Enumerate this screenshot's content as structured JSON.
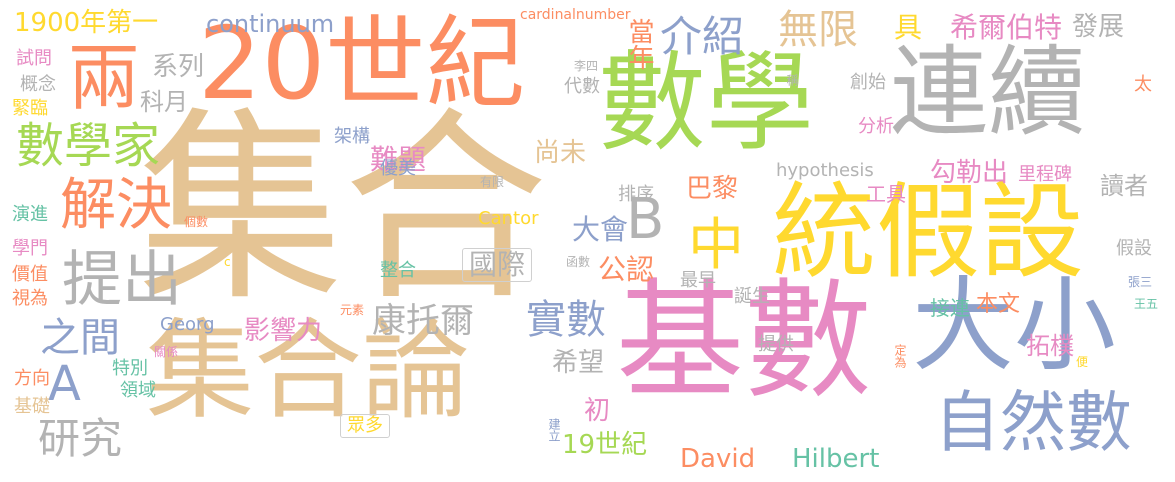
{
  "palette": {
    "orange": "#fc8d62",
    "blue": "#8da0cb",
    "pink": "#e78ac3",
    "green": "#a6d854",
    "yellow": "#ffd92f",
    "tan": "#e5c494",
    "gray": "#b3b3b3",
    "teal": "#66c2a5"
  },
  "words": [
    {
      "text": "集合",
      "color": "tan"
    },
    {
      "text": "數學",
      "color": "green"
    },
    {
      "text": "基數",
      "color": "pink"
    },
    {
      "text": "20世紀",
      "color": "orange"
    },
    {
      "text": "連續",
      "color": "gray"
    },
    {
      "text": "統假設",
      "color": "yellow"
    },
    {
      "text": "集合論",
      "color": "tan"
    },
    {
      "text": "大小",
      "color": "blue"
    },
    {
      "text": "自然數",
      "color": "blue"
    },
    {
      "text": "兩",
      "color": "orange"
    },
    {
      "text": "數學家",
      "color": "green"
    },
    {
      "text": "解決",
      "color": "orange"
    },
    {
      "text": "提出",
      "color": "gray"
    },
    {
      "text": "B",
      "color": "gray"
    },
    {
      "text": "中",
      "color": "yellow"
    },
    {
      "text": "A",
      "color": "blue"
    },
    {
      "text": "之間",
      "color": "blue"
    },
    {
      "text": "研究",
      "color": "gray"
    },
    {
      "text": "康托爾",
      "color": "gray"
    },
    {
      "text": "實數",
      "color": "blue"
    },
    {
      "text": "1900年第一",
      "color": "yellow"
    },
    {
      "text": "continuum",
      "color": "blue"
    },
    {
      "text": "cardinalnumber",
      "color": "orange"
    },
    {
      "text": "介紹",
      "color": "blue"
    },
    {
      "text": "當年",
      "color": "orange"
    },
    {
      "text": "無限",
      "color": "tan"
    },
    {
      "text": "具",
      "color": "yellow"
    },
    {
      "text": "希爾伯特",
      "color": "pink"
    },
    {
      "text": "發展",
      "color": "gray"
    },
    {
      "text": "系列",
      "color": "gray"
    },
    {
      "text": "科月",
      "color": "gray"
    },
    {
      "text": "難題",
      "color": "pink"
    },
    {
      "text": "尚未",
      "color": "tan"
    },
    {
      "text": "巴黎",
      "color": "orange"
    },
    {
      "text": "大會",
      "color": "blue"
    },
    {
      "text": "國際",
      "color": "gray"
    },
    {
      "text": "公認",
      "color": "orange"
    },
    {
      "text": "影響力",
      "color": "pink"
    },
    {
      "text": "希望",
      "color": "gray"
    },
    {
      "text": "初",
      "color": "pink"
    },
    {
      "text": "19世紀",
      "color": "green"
    },
    {
      "text": "David",
      "color": "orange"
    },
    {
      "text": "Hilbert",
      "color": "teal"
    },
    {
      "text": "勾勒出",
      "color": "pink"
    },
    {
      "text": "hypothesis",
      "color": "gray"
    },
    {
      "text": "Cantor",
      "color": "yellow"
    },
    {
      "text": "里程碑",
      "color": "pink"
    },
    {
      "text": "讀者",
      "color": "gray"
    },
    {
      "text": "工具",
      "color": "pink"
    },
    {
      "text": "本文",
      "color": "orange"
    },
    {
      "text": "接連",
      "color": "teal"
    },
    {
      "text": "誕生",
      "color": "gray"
    },
    {
      "text": "拓樸",
      "color": "pink"
    },
    {
      "text": "提供",
      "color": "gray"
    },
    {
      "text": "最早",
      "color": "gray"
    },
    {
      "text": "排序",
      "color": "gray"
    },
    {
      "text": "分析",
      "color": "pink"
    },
    {
      "text": "創始",
      "color": "gray"
    },
    {
      "text": "代數",
      "color": "gray"
    },
    {
      "text": "架構",
      "color": "blue"
    },
    {
      "text": "優美",
      "color": "blue"
    },
    {
      "text": "有限",
      "color": "gray"
    },
    {
      "text": "整合",
      "color": "teal"
    },
    {
      "text": "元素",
      "color": "orange"
    },
    {
      "text": "函數",
      "color": "gray"
    },
    {
      "text": "Georg",
      "color": "blue"
    },
    {
      "text": "關係",
      "color": "pink"
    },
    {
      "text": "特別",
      "color": "teal"
    },
    {
      "text": "領域",
      "color": "teal"
    },
    {
      "text": "眾多",
      "color": "yellow"
    },
    {
      "text": "建立",
      "color": "blue"
    },
    {
      "text": "試問",
      "color": "pink"
    },
    {
      "text": "概念",
      "color": "gray"
    },
    {
      "text": "緊臨",
      "color": "yellow"
    },
    {
      "text": "演進",
      "color": "teal"
    },
    {
      "text": "學門",
      "color": "pink"
    },
    {
      "text": "價值",
      "color": "orange"
    },
    {
      "text": "視為",
      "color": "orange"
    },
    {
      "text": "方向",
      "color": "orange"
    },
    {
      "text": "基礎",
      "color": "tan"
    },
    {
      "text": "個數",
      "color": "orange"
    },
    {
      "text": "c",
      "color": "yellow"
    },
    {
      "text": "李四",
      "color": "gray"
    },
    {
      "text": "稱",
      "color": "gray"
    },
    {
      "text": "太",
      "color": "orange"
    },
    {
      "text": "假設",
      "color": "gray"
    },
    {
      "text": "張三",
      "color": "blue"
    },
    {
      "text": "王五",
      "color": "teal"
    },
    {
      "text": "定為",
      "color": "orange"
    },
    {
      "text": "便",
      "color": "yellow"
    }
  ]
}
